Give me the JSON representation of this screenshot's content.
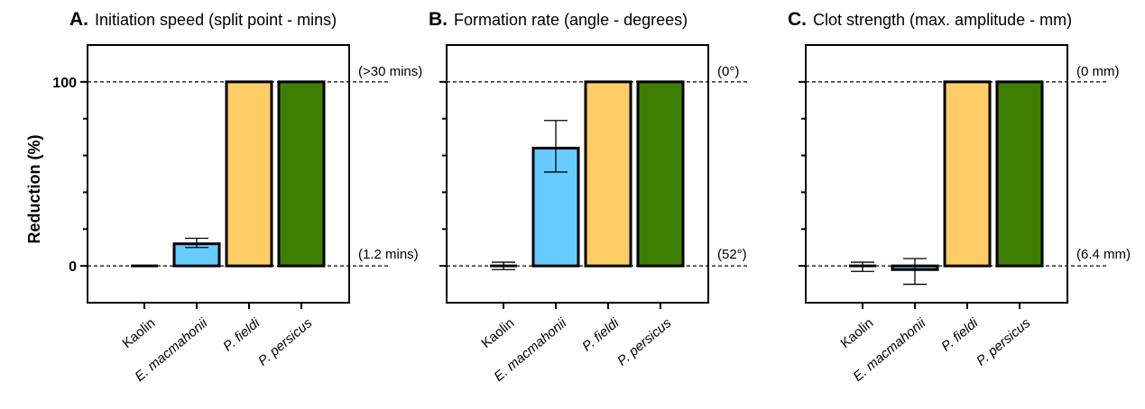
{
  "y_axis": {
    "label": "Reduction  (%)",
    "ticks": [
      0,
      100
    ]
  },
  "chart_data": [
    {
      "type": "bar",
      "letter": "A.",
      "title": "Initiation speed (split point - mins)",
      "categories": [
        "Kaolin",
        "E. macmahonii",
        "P. fieldi",
        "P. persicus"
      ],
      "values": [
        0,
        12,
        100,
        100
      ],
      "errors": [
        [
          0,
          0
        ],
        [
          10,
          15
        ],
        [
          100,
          100
        ],
        [
          100,
          100
        ]
      ],
      "colors": [
        "#ffffff",
        "#66ccff",
        "#ffcc66",
        "#3f7f00"
      ],
      "ylim": [
        -20,
        120
      ],
      "ref_top_label": "(>30 mins)",
      "ref_bottom_label": "(1.2 mins)"
    },
    {
      "type": "bar",
      "letter": "B.",
      "title": "Formation rate (angle - degrees)",
      "categories": [
        "Kaolin",
        "E. macmahonii",
        "P. fieldi",
        "P. persicus"
      ],
      "values": [
        0,
        64,
        100,
        100
      ],
      "errors": [
        [
          -2,
          2
        ],
        [
          51,
          79
        ],
        [
          100,
          100
        ],
        [
          100,
          100
        ]
      ],
      "colors": [
        "#ffffff",
        "#66ccff",
        "#ffcc66",
        "#3f7f00"
      ],
      "ylim": [
        -20,
        120
      ],
      "ref_top_label": "(0°)",
      "ref_bottom_label": "(52°)"
    },
    {
      "type": "bar",
      "letter": "C.",
      "title": "Clot strength (max. amplitude - mm)",
      "categories": [
        "Kaolin",
        "E. macmahonii",
        "P. fieldi",
        "P. persicus"
      ],
      "values": [
        0,
        -2,
        100,
        100
      ],
      "errors": [
        [
          -3,
          2
        ],
        [
          -10,
          4
        ],
        [
          100,
          100
        ],
        [
          100,
          100
        ]
      ],
      "colors": [
        "#ffffff",
        "#66ccff",
        "#ffcc66",
        "#3f7f00"
      ],
      "ylim": [
        -20,
        120
      ],
      "ref_top_label": "(0 mm)",
      "ref_bottom_label": "(6.4 mm)"
    }
  ]
}
